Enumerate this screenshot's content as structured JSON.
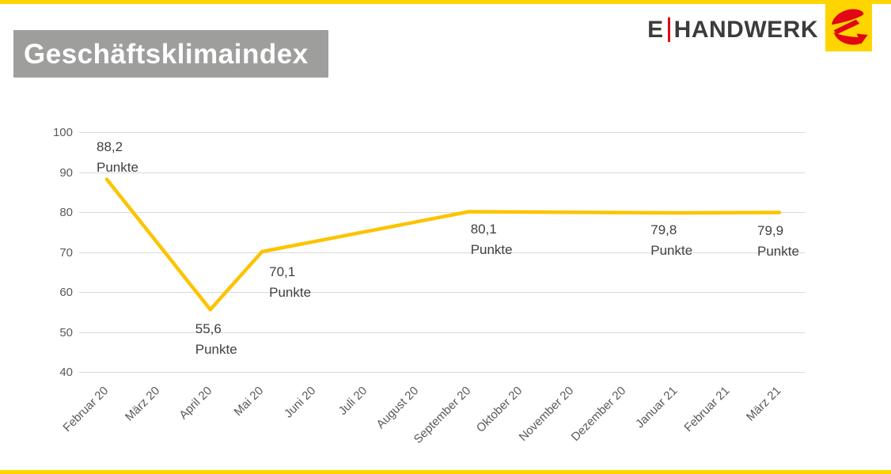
{
  "header": {
    "title": "Geschäftsklimaindex"
  },
  "logo": {
    "brand_prefix": "E",
    "brand_name": "HANDWERK",
    "mark": "e-handwerk-arrow-emblem"
  },
  "colors": {
    "accent_yellow": "#FFD500",
    "line_yellow": "#FDC300",
    "brand_red": "#E30613",
    "title_bg": "#9E9E9D",
    "title_text": "#FFFFFF",
    "brand_text": "#3C3C3B",
    "data_label_text": "#404040",
    "axis_text": "#595959",
    "gridline": "#D9D9D9"
  },
  "chart_data": {
    "type": "line",
    "title": "Geschäftsklimaindex",
    "xlabel": "",
    "ylabel": "",
    "ylim": [
      40,
      100
    ],
    "yticks": [
      100,
      90,
      80,
      70,
      60,
      50,
      40
    ],
    "grid": true,
    "legend_position": "none",
    "line_color": "#FDC300",
    "unit": "Punkte",
    "categories": [
      "Februar 20",
      "März 20",
      "April 20",
      "Mai 20",
      "Juni 20",
      "Juli 20",
      "August 20",
      "September 20",
      "Oktober 20",
      "November 20",
      "Dezember 20",
      "Januar 21",
      "Februar 21",
      "März 21"
    ],
    "series": [
      {
        "name": "Geschäftsklimaindex",
        "points": [
          {
            "category": "Februar 20",
            "value": 88.2,
            "label_value": "88,2",
            "label_unit": "Punkte",
            "label_dx": -13,
            "label_dy": -54
          },
          {
            "category": "April 20",
            "value": 55.6,
            "label_value": "55,6",
            "label_unit": "Punkte",
            "label_dx": -19,
            "label_dy": 12
          },
          {
            "category": "Mai 20",
            "value": 70.1,
            "label_value": "70,1",
            "label_unit": "Punkte",
            "label_dx": 9,
            "label_dy": 13
          },
          {
            "category": "September 20",
            "value": 80.1,
            "label_value": "80,1",
            "label_unit": "Punkte",
            "label_dx": 2,
            "label_dy": 10
          },
          {
            "category": "Januar 21",
            "value": 79.8,
            "label_value": "79,8",
            "label_unit": "Punkte",
            "label_dx": -32,
            "label_dy": 9
          },
          {
            "category": "März 21",
            "value": 79.9,
            "label_value": "79,9",
            "label_unit": "Punkte",
            "label_dx": -28,
            "label_dy": 10
          }
        ]
      }
    ]
  }
}
